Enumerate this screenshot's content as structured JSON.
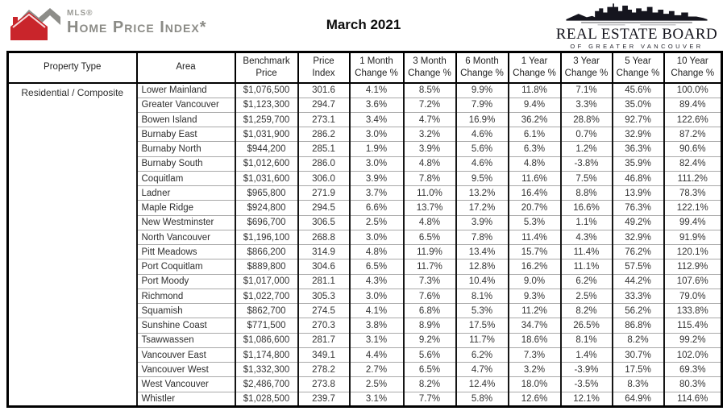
{
  "header": {
    "mls_logo": {
      "brand": "MLS®",
      "product": "Home Price Index*",
      "red": "#c9252b",
      "gray": "#8d8d89"
    },
    "report_date": "March 2021",
    "board_logo": {
      "title": "REAL ESTATE BOARD",
      "subtitle": "OF GREATER VANCOUVER"
    }
  },
  "table": {
    "property_type": "Residential / Composite",
    "headers": [
      "Property Type",
      "Area",
      "Benchmark\nPrice",
      "Price\nIndex",
      "1 Month\nChange %",
      "3 Month\nChange %",
      "6 Month\nChange %",
      "1 Year\nChange %",
      "3 Year\nChange %",
      "5 Year\nChange %",
      "10 Year\nChange %"
    ],
    "rows": [
      {
        "area": "Lower Mainland",
        "benchmark_price": "$1,076,500",
        "price_index": "301.6",
        "changes": [
          "4.1%",
          "8.5%",
          "9.9%",
          "11.8%",
          "7.1%",
          "45.6%",
          "100.0%"
        ]
      },
      {
        "area": "Greater Vancouver",
        "benchmark_price": "$1,123,300",
        "price_index": "294.7",
        "changes": [
          "3.6%",
          "7.2%",
          "7.9%",
          "9.4%",
          "3.3%",
          "35.0%",
          "89.4%"
        ]
      },
      {
        "area": "Bowen Island",
        "benchmark_price": "$1,259,700",
        "price_index": "273.1",
        "changes": [
          "3.4%",
          "4.7%",
          "16.9%",
          "36.2%",
          "28.8%",
          "92.7%",
          "122.6%"
        ]
      },
      {
        "area": "Burnaby East",
        "benchmark_price": "$1,031,900",
        "price_index": "286.2",
        "changes": [
          "3.0%",
          "3.2%",
          "4.6%",
          "6.1%",
          "0.7%",
          "32.9%",
          "87.2%"
        ]
      },
      {
        "area": "Burnaby North",
        "benchmark_price": "$944,200",
        "price_index": "285.1",
        "changes": [
          "1.9%",
          "3.9%",
          "5.6%",
          "6.3%",
          "1.2%",
          "36.3%",
          "90.6%"
        ]
      },
      {
        "area": "Burnaby South",
        "benchmark_price": "$1,012,600",
        "price_index": "286.0",
        "changes": [
          "3.0%",
          "4.8%",
          "4.6%",
          "4.8%",
          "-3.8%",
          "35.9%",
          "82.4%"
        ]
      },
      {
        "area": "Coquitlam",
        "benchmark_price": "$1,031,600",
        "price_index": "306.0",
        "changes": [
          "3.9%",
          "7.8%",
          "9.5%",
          "11.6%",
          "7.5%",
          "46.8%",
          "111.2%"
        ]
      },
      {
        "area": "Ladner",
        "benchmark_price": "$965,800",
        "price_index": "271.9",
        "changes": [
          "3.7%",
          "11.0%",
          "13.2%",
          "16.4%",
          "8.8%",
          "13.9%",
          "78.3%"
        ]
      },
      {
        "area": "Maple Ridge",
        "benchmark_price": "$924,800",
        "price_index": "294.5",
        "changes": [
          "6.6%",
          "13.7%",
          "17.2%",
          "20.7%",
          "16.6%",
          "76.3%",
          "122.1%"
        ]
      },
      {
        "area": "New Westminster",
        "benchmark_price": "$696,700",
        "price_index": "306.5",
        "changes": [
          "2.5%",
          "4.8%",
          "3.9%",
          "5.3%",
          "1.1%",
          "49.2%",
          "99.4%"
        ]
      },
      {
        "area": "North Vancouver",
        "benchmark_price": "$1,196,100",
        "price_index": "268.8",
        "changes": [
          "3.0%",
          "6.5%",
          "7.8%",
          "11.4%",
          "4.3%",
          "32.9%",
          "91.9%"
        ]
      },
      {
        "area": "Pitt Meadows",
        "benchmark_price": "$866,200",
        "price_index": "314.9",
        "changes": [
          "4.8%",
          "11.9%",
          "13.4%",
          "15.7%",
          "11.4%",
          "76.2%",
          "120.1%"
        ]
      },
      {
        "area": "Port Coquitlam",
        "benchmark_price": "$889,800",
        "price_index": "304.6",
        "changes": [
          "6.5%",
          "11.7%",
          "12.8%",
          "16.2%",
          "11.1%",
          "57.5%",
          "112.9%"
        ]
      },
      {
        "area": "Port Moody",
        "benchmark_price": "$1,017,000",
        "price_index": "281.1",
        "changes": [
          "4.3%",
          "7.3%",
          "10.4%",
          "9.0%",
          "6.2%",
          "44.2%",
          "107.6%"
        ]
      },
      {
        "area": "Richmond",
        "benchmark_price": "$1,022,700",
        "price_index": "305.3",
        "changes": [
          "3.0%",
          "7.6%",
          "8.1%",
          "9.3%",
          "2.5%",
          "33.3%",
          "79.0%"
        ]
      },
      {
        "area": "Squamish",
        "benchmark_price": "$862,700",
        "price_index": "274.5",
        "changes": [
          "4.1%",
          "6.8%",
          "5.3%",
          "11.2%",
          "8.2%",
          "56.2%",
          "133.8%"
        ]
      },
      {
        "area": "Sunshine Coast",
        "benchmark_price": "$771,500",
        "price_index": "270.3",
        "changes": [
          "3.8%",
          "8.9%",
          "17.5%",
          "34.7%",
          "26.5%",
          "86.8%",
          "115.4%"
        ]
      },
      {
        "area": "Tsawwassen",
        "benchmark_price": "$1,086,600",
        "price_index": "281.7",
        "changes": [
          "3.1%",
          "9.2%",
          "11.7%",
          "18.6%",
          "8.1%",
          "8.2%",
          "99.2%"
        ]
      },
      {
        "area": "Vancouver East",
        "benchmark_price": "$1,174,800",
        "price_index": "349.1",
        "changes": [
          "4.4%",
          "5.6%",
          "6.2%",
          "7.3%",
          "1.4%",
          "30.7%",
          "102.0%"
        ]
      },
      {
        "area": "Vancouver West",
        "benchmark_price": "$1,332,300",
        "price_index": "278.2",
        "changes": [
          "2.7%",
          "6.5%",
          "4.7%",
          "3.2%",
          "-3.9%",
          "17.5%",
          "69.3%"
        ]
      },
      {
        "area": "West Vancouver",
        "benchmark_price": "$2,486,700",
        "price_index": "273.8",
        "changes": [
          "2.5%",
          "8.2%",
          "12.4%",
          "18.0%",
          "-3.5%",
          "8.3%",
          "80.3%"
        ]
      },
      {
        "area": "Whistler",
        "benchmark_price": "$1,028,500",
        "price_index": "239.7",
        "changes": [
          "3.1%",
          "7.7%",
          "5.8%",
          "12.6%",
          "12.1%",
          "64.9%",
          "114.6%"
        ]
      }
    ]
  }
}
